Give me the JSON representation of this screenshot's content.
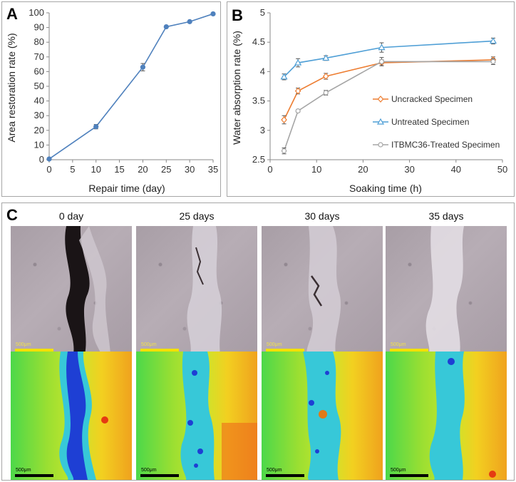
{
  "chart_data": [
    {
      "type": "line",
      "panel_label": "A",
      "xlabel": "Repair time (day)",
      "ylabel": "Area restoration rate (%)",
      "xlim": [
        0,
        35
      ],
      "ylim": [
        0,
        100
      ],
      "xticks": [
        0,
        5,
        10,
        15,
        20,
        25,
        30,
        35
      ],
      "yticks": [
        0,
        10,
        20,
        30,
        40,
        50,
        60,
        70,
        80,
        90,
        100
      ],
      "grid": false,
      "series": [
        {
          "x": [
            0,
            10,
            20,
            25,
            30,
            35
          ],
          "values": [
            0.5,
            22.5,
            63,
            90.5,
            94,
            99.3
          ],
          "errors": [
            0,
            1.5,
            2.5,
            0,
            0,
            0
          ],
          "color": "#4f81bd",
          "marker": "circle"
        }
      ]
    },
    {
      "type": "line",
      "panel_label": "B",
      "xlabel": "Soaking time (h)",
      "ylabel": "Water absorption rate (%)",
      "xlim": [
        0,
        50
      ],
      "ylim": [
        2.5,
        5
      ],
      "xticks": [
        0,
        10,
        20,
        30,
        40,
        50
      ],
      "yticks": [
        2.5,
        3,
        3.5,
        4,
        4.5,
        5
      ],
      "ytick_labels": [
        "2.5",
        "3",
        "3.5",
        "4",
        "4.5",
        "5"
      ],
      "grid": false,
      "legend": "right",
      "series": [
        {
          "name": "Uncracked Specimen",
          "x": [
            3,
            6,
            12,
            24,
            48
          ],
          "values": [
            3.18,
            3.67,
            3.92,
            4.15,
            4.2
          ],
          "errors": [
            0.07,
            0.05,
            0.05,
            0.05,
            0.05
          ],
          "color": "#ed7d31",
          "marker": "diamond"
        },
        {
          "name": "Untreated Specimen",
          "x": [
            3,
            6,
            12,
            24,
            48
          ],
          "values": [
            3.91,
            4.15,
            4.23,
            4.41,
            4.52
          ],
          "errors": [
            0.05,
            0.07,
            0.04,
            0.08,
            0.05
          ],
          "color": "#4f9fd6",
          "marker": "triangle"
        },
        {
          "name": "ITBMC36-Treated Specimen",
          "x": [
            3,
            6,
            12,
            24,
            48
          ],
          "values": [
            2.65,
            3.33,
            3.64,
            4.17,
            4.17
          ],
          "errors": [
            0.05,
            0.02,
            0.04,
            0.07,
            0.05
          ],
          "color": "#a5a5a5",
          "marker": "circle"
        }
      ]
    }
  ],
  "panel_c": {
    "label": "C",
    "columns": [
      "0 day",
      "25 days",
      "30 days",
      "35 days"
    ],
    "scale_label": "500μm"
  }
}
